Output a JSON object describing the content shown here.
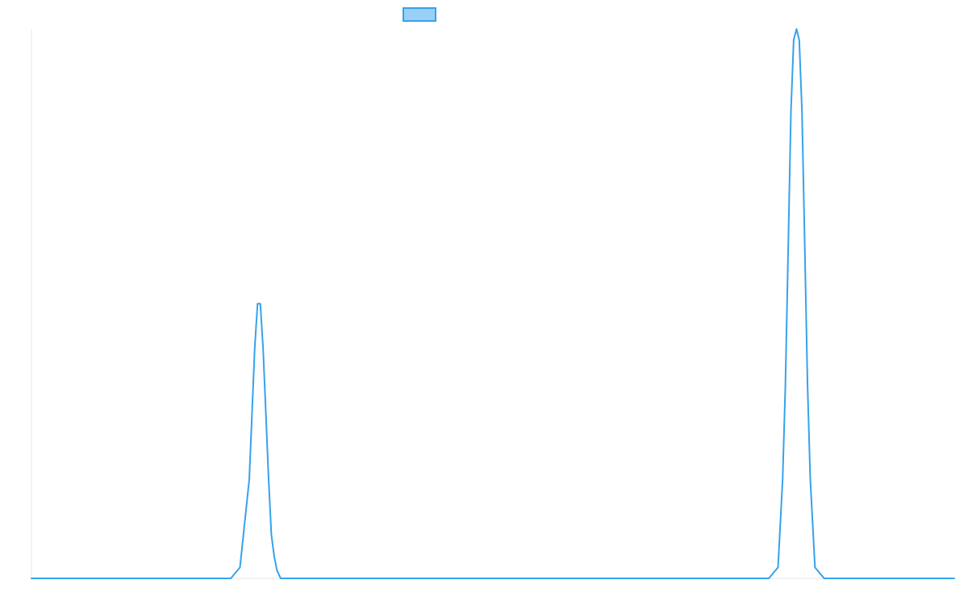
{
  "chart_data": {
    "type": "line",
    "title": "",
    "xlabel": "",
    "ylabel": "",
    "grid": false,
    "legend": {
      "placement": "top-center",
      "entries": [
        {
          "label": "",
          "swatch_fill": "#9ad0f5",
          "swatch_stroke": "#36a2eb"
        }
      ]
    },
    "xlim": [
      0,
      100
    ],
    "ylim": [
      0,
      1
    ],
    "series": [
      {
        "color": "#36a2eb",
        "x": [
          0,
          21.6,
          22.6,
          23.6,
          23.9,
          24.2,
          24.5,
          24.8,
          25.1,
          25.4,
          25.7,
          26.0,
          26.3,
          26.6,
          27.0,
          28.0,
          29.0,
          50,
          79.9,
          80.9,
          81.4,
          81.7,
          82.0,
          82.3,
          82.6,
          82.9,
          83.2,
          83.5,
          83.8,
          84.1,
          84.4,
          84.9,
          85.9,
          100
        ],
        "y": [
          0,
          0,
          0.02,
          0.18,
          0.3,
          0.42,
          0.5,
          0.5,
          0.42,
          0.3,
          0.18,
          0.08,
          0.04,
          0.015,
          0,
          0,
          0,
          0,
          0,
          0.02,
          0.18,
          0.35,
          0.6,
          0.85,
          0.98,
          1.0,
          0.98,
          0.85,
          0.6,
          0.35,
          0.18,
          0.02,
          0,
          0
        ]
      }
    ]
  }
}
